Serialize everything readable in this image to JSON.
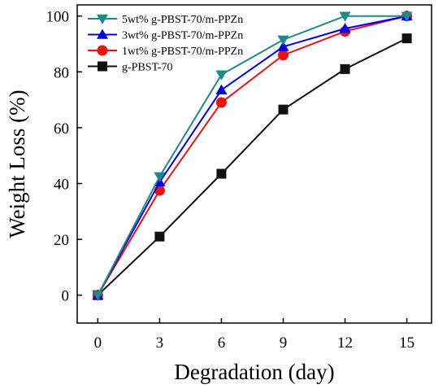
{
  "chart_data": {
    "type": "line",
    "title": "",
    "xlabel": "Degradation (day)",
    "ylabel": "Weight Loss (%)",
    "x": [
      0,
      3,
      6,
      9,
      12,
      15
    ],
    "xticks": [
      0,
      3,
      6,
      9,
      12,
      15
    ],
    "yticks": [
      0,
      20,
      40,
      60,
      80,
      100
    ],
    "xlim": [
      -1.0,
      16.2
    ],
    "ylim": [
      -10,
      104
    ],
    "grid": false,
    "legend_position": "top-left",
    "series": [
      {
        "name": "5wt% g-PBST-70/m-PPZn",
        "marker": "triangle-down",
        "color": "#1b8a8a",
        "values": [
          0,
          42.5,
          79,
          91.5,
          100,
          100
        ]
      },
      {
        "name": "3wt% g-PBST-70/m-PPZn",
        "marker": "triangle-up",
        "color": "#0000ee",
        "values": [
          0,
          40.5,
          73.5,
          89,
          95.5,
          100
        ]
      },
      {
        "name": "1wt% g-PBST-70/m-PPZn",
        "marker": "circle",
        "color": "#ee1111",
        "values": [
          0,
          37.5,
          69,
          86,
          94.5,
          100
        ]
      },
      {
        "name": "g-PBST-70",
        "marker": "square",
        "color": "#111111",
        "values": [
          0,
          21,
          43.5,
          66.5,
          81,
          92
        ]
      }
    ]
  }
}
